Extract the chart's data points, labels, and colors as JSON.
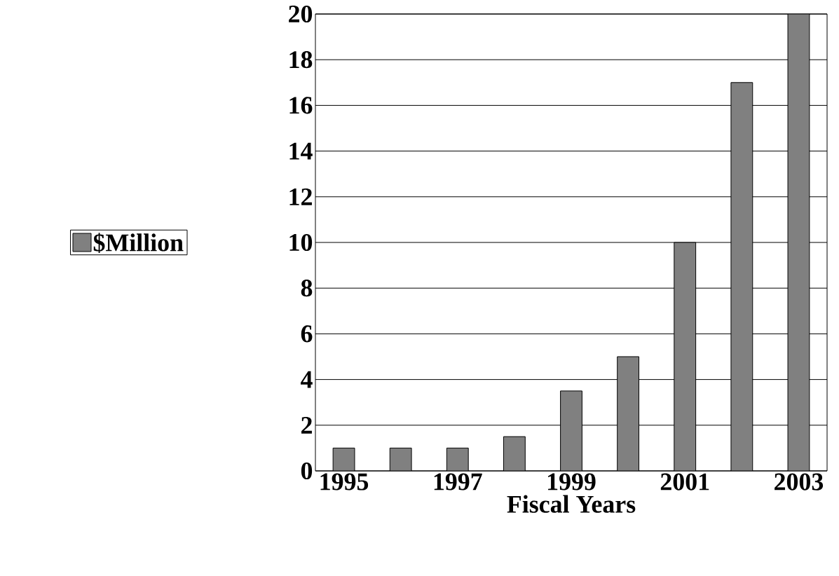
{
  "chart_data": {
    "type": "bar",
    "xlabel": "Fiscal Years",
    "categories": [
      "1995",
      null,
      "1997",
      null,
      "1999",
      null,
      "2001",
      null,
      "2003"
    ],
    "series": [
      {
        "name": "$Million",
        "color": "#808080",
        "values": [
          1,
          1,
          1,
          1.5,
          3.5,
          5,
          10,
          17,
          20
        ]
      }
    ],
    "ylim": [
      0,
      20
    ],
    "yticks": [
      0,
      2,
      4,
      6,
      8,
      10,
      12,
      14,
      16,
      18,
      20
    ],
    "grid": "y",
    "legend": "left"
  }
}
